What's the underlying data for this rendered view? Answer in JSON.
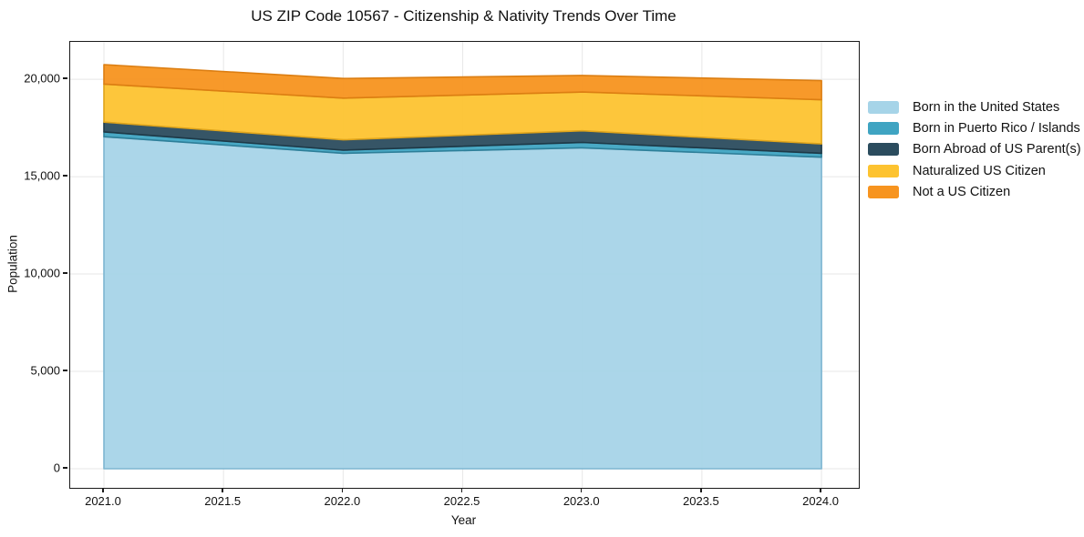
{
  "title": "US ZIP Code 10567 - Citizenship & Nativity Trends Over Time",
  "colors": {
    "background": "#ffffff",
    "grid": "#e7e7e7",
    "spine": "#1a1a1a",
    "text": "#111111"
  },
  "chart_data": {
    "type": "area",
    "stacked": true,
    "title": "US ZIP Code 10567 - Citizenship & Nativity Trends Over Time",
    "xlabel": "Year",
    "ylabel": "Population",
    "x": [
      2021,
      2022,
      2023,
      2024
    ],
    "series": [
      {
        "name": "Born in the United States",
        "color": "#A6D4E8",
        "edge": "#7EB6D1",
        "values": [
          17050,
          16200,
          16480,
          16000
        ]
      },
      {
        "name": "Born in Puerto Rico / Islands",
        "color": "#3FA4C2",
        "edge": "#2E7F99",
        "values": [
          250,
          160,
          275,
          200
        ]
      },
      {
        "name": "Born Abroad of US Parent(s)",
        "color": "#2B4C5E",
        "edge": "#1E3947",
        "values": [
          500,
          530,
          600,
          480
        ]
      },
      {
        "name": "Naturalized US Citizen",
        "color": "#FDC330",
        "edge": "#DFA41B",
        "values": [
          1950,
          2140,
          1990,
          2270
        ]
      },
      {
        "name": "Not a US Citizen",
        "color": "#F7941F",
        "edge": "#DC7E12",
        "values": [
          1000,
          1010,
          850,
          980
        ]
      }
    ],
    "totals": [
      20750,
      20040,
      20195,
      19930
    ],
    "x_ticks": [
      "2021.0",
      "2021.5",
      "2022.0",
      "2022.5",
      "2023.0",
      "2023.5",
      "2024.0"
    ],
    "y_ticks": [
      "0",
      "5,000",
      "10,000",
      "15,000",
      "20,000"
    ],
    "xlim": [
      2020.859,
      2024.156
    ],
    "ylim": [
      -980,
      21920
    ],
    "grid": true,
    "legend_position": "outside-right"
  }
}
